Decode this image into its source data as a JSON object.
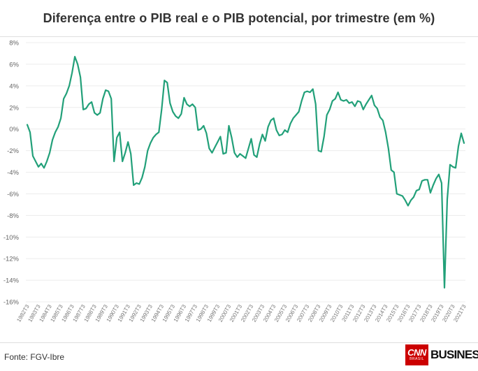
{
  "chart_data": {
    "type": "line",
    "title": "Diferença entre o PIB real e o PIB potencial, por trimestre (em %)",
    "xlabel": "",
    "ylabel": "",
    "ylim": [
      -16,
      8
    ],
    "yticks": [
      "8%",
      "6%",
      "4%",
      "2%",
      "0%",
      "-2%",
      "-4%",
      "-6%",
      "-8%",
      "-10%",
      "-12%",
      "-14%",
      "-16%"
    ],
    "ytick_values": [
      8,
      6,
      4,
      2,
      0,
      -2,
      -4,
      -6,
      -8,
      -10,
      -12,
      -14,
      -16
    ],
    "xticks": [
      "1982T3",
      "1983T3",
      "1984T3",
      "1985T3",
      "1986T3",
      "1987T3",
      "1988T3",
      "1989T3",
      "1990T3",
      "1991T3",
      "1992T3",
      "1993T3",
      "1994T3",
      "1995T3",
      "1996T3",
      "1997T3",
      "1998T3",
      "1999T3",
      "2000T3",
      "2001T3",
      "2002T3",
      "2003T3",
      "2004T3",
      "2005T3",
      "2006T3",
      "2007T3",
      "2008T3",
      "2009T3",
      "2010T3",
      "2011T3",
      "2012T3",
      "2013T3",
      "2014T3",
      "2015T3",
      "2016T3",
      "2017T3",
      "2018T3",
      "2019T3",
      "2020T3",
      "2021T3"
    ],
    "grid": true,
    "line_color": "#22a079",
    "series": [
      {
        "x_start": "1982T3",
        "values": [
          0.4,
          -0.3,
          -2.5,
          -3.0,
          -3.5,
          -3.2,
          -3.6,
          -3.0,
          -2.2,
          -1.0,
          -0.3,
          0.2,
          1.0,
          2.8,
          3.3,
          4.0,
          5.2,
          6.7,
          6.0,
          4.8,
          1.8,
          1.9,
          2.3,
          2.5,
          1.5,
          1.3,
          1.5,
          2.8,
          3.6,
          3.5,
          2.8,
          -3.0,
          -0.8,
          -0.3,
          -3.0,
          -2.2,
          -1.2,
          -2.3,
          -5.2,
          -5.0,
          -5.1,
          -4.5,
          -3.5,
          -2.0,
          -1.3,
          -0.8,
          -0.5,
          -0.3,
          1.8,
          4.5,
          4.3,
          2.4,
          1.6,
          1.2,
          1.0,
          1.4,
          2.9,
          2.3,
          2.1,
          2.3,
          2.0,
          -0.1,
          0.0,
          0.3,
          -0.4,
          -1.8,
          -2.2,
          -1.7,
          -1.2,
          -0.7,
          -2.3,
          -2.2,
          0.3,
          -0.8,
          -2.2,
          -2.6,
          -2.3,
          -2.5,
          -2.7,
          -1.8,
          -0.9,
          -2.4,
          -2.6,
          -1.4,
          -0.5,
          -1.1,
          0.2,
          0.8,
          1.0,
          -0.1,
          -0.6,
          -0.5,
          -0.1,
          -0.3,
          0.5,
          1.0,
          1.3,
          1.6,
          2.6,
          3.4,
          3.5,
          3.4,
          3.7,
          2.3,
          -2.0,
          -2.1,
          -0.7,
          1.3,
          1.8,
          2.6,
          2.8,
          3.4,
          2.7,
          2.6,
          2.7,
          2.4,
          2.5,
          2.1,
          2.6,
          2.5,
          1.8,
          2.3,
          2.7,
          3.1,
          2.2,
          1.9,
          1.1,
          0.8,
          -0.3,
          -1.8,
          -3.8,
          -4.0,
          -6.0,
          -6.1,
          -6.2,
          -6.6,
          -7.1,
          -6.6,
          -6.3,
          -5.7,
          -5.6,
          -4.8,
          -4.7,
          -4.7,
          -5.9,
          -5.2,
          -4.6,
          -4.2,
          -5.0,
          -14.7,
          -6.5,
          -3.3,
          -3.5,
          -3.6,
          -1.6,
          -0.4,
          -1.3
        ]
      }
    ],
    "source": "Fonte: FGV-Ibre"
  },
  "logo": {
    "brand": "CNN",
    "brand_sub": "BRASIL",
    "word": "BUSINESS",
    "color": "#cc0000"
  }
}
